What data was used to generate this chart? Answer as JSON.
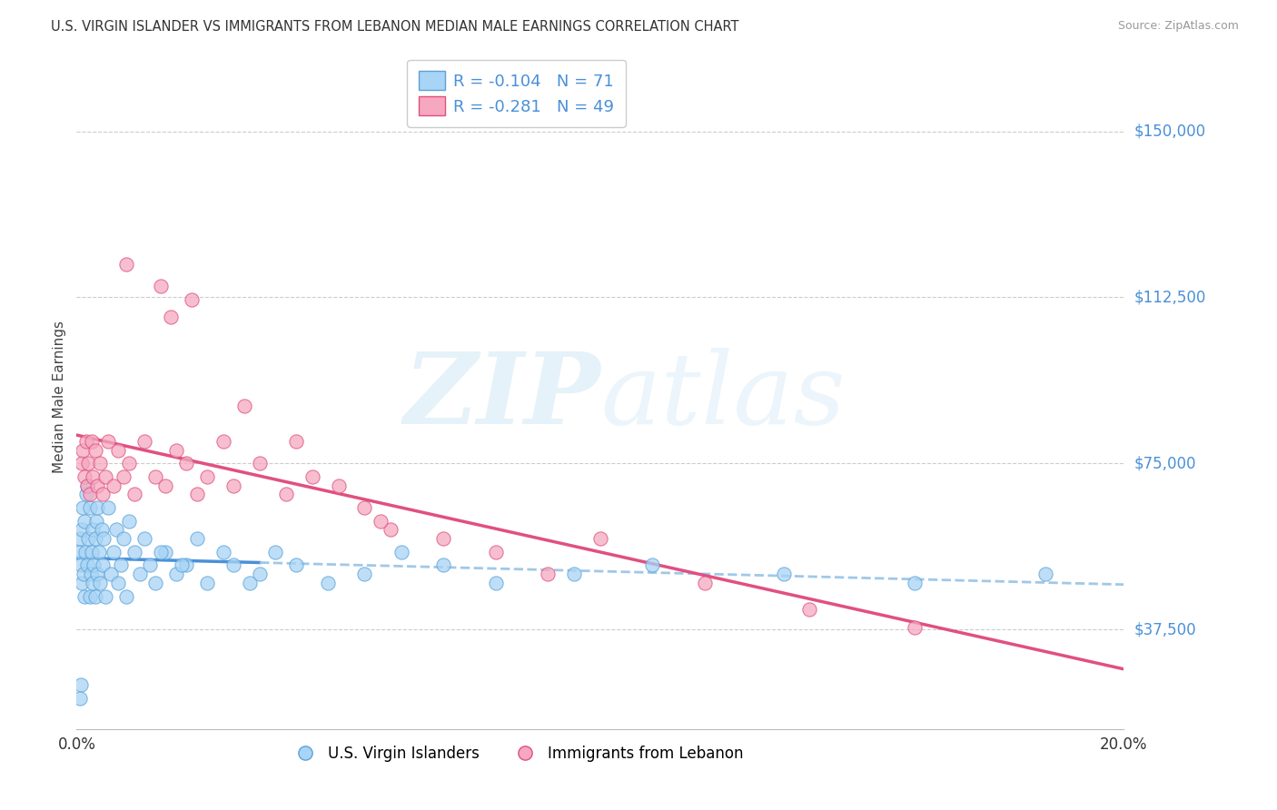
{
  "title": "U.S. VIRGIN ISLANDER VS IMMIGRANTS FROM LEBANON MEDIAN MALE EARNINGS CORRELATION CHART",
  "source": "Source: ZipAtlas.com",
  "ylabel": "Median Male Earnings",
  "y_ticks": [
    37500,
    75000,
    112500,
    150000
  ],
  "y_tick_labels": [
    "$37,500",
    "$75,000",
    "$112,500",
    "$150,000"
  ],
  "x_min": 0.0,
  "x_max": 20.0,
  "y_min": 15000,
  "y_max": 165000,
  "color_blue": "#a8d4f5",
  "color_blue_edge": "#5ba3d9",
  "color_pink": "#f5a8c0",
  "color_pink_edge": "#e05080",
  "color_trend_blue_solid": "#4a90d9",
  "color_trend_blue_dash": "#a0c8e8",
  "color_trend_pink": "#e05080",
  "color_axis_label": "#4a90d9",
  "color_grid": "#cccccc",
  "blue_x": [
    0.05,
    0.07,
    0.08,
    0.1,
    0.1,
    0.12,
    0.13,
    0.15,
    0.15,
    0.17,
    0.18,
    0.2,
    0.2,
    0.22,
    0.25,
    0.25,
    0.27,
    0.28,
    0.3,
    0.3,
    0.32,
    0.35,
    0.35,
    0.37,
    0.4,
    0.4,
    0.42,
    0.45,
    0.48,
    0.5,
    0.52,
    0.55,
    0.6,
    0.65,
    0.7,
    0.75,
    0.8,
    0.85,
    0.9,
    0.95,
    1.0,
    1.1,
    1.2,
    1.3,
    1.4,
    1.5,
    1.7,
    1.9,
    2.1,
    2.3,
    2.5,
    2.8,
    3.0,
    3.3,
    3.5,
    3.8,
    4.2,
    4.8,
    5.5,
    6.2,
    7.0,
    8.0,
    9.5,
    11.0,
    13.5,
    16.0,
    18.5,
    1.6,
    2.0,
    0.08,
    0.06
  ],
  "blue_y": [
    55000,
    58000,
    52000,
    60000,
    48000,
    65000,
    50000,
    62000,
    45000,
    55000,
    68000,
    52000,
    70000,
    58000,
    45000,
    65000,
    50000,
    55000,
    60000,
    48000,
    52000,
    58000,
    45000,
    62000,
    50000,
    65000,
    55000,
    48000,
    60000,
    52000,
    58000,
    45000,
    65000,
    50000,
    55000,
    60000,
    48000,
    52000,
    58000,
    45000,
    62000,
    55000,
    50000,
    58000,
    52000,
    48000,
    55000,
    50000,
    52000,
    58000,
    48000,
    55000,
    52000,
    48000,
    50000,
    55000,
    52000,
    48000,
    50000,
    55000,
    52000,
    48000,
    50000,
    52000,
    50000,
    48000,
    50000,
    55000,
    52000,
    25000,
    22000
  ],
  "pink_x": [
    0.1,
    0.12,
    0.15,
    0.18,
    0.2,
    0.22,
    0.25,
    0.28,
    0.3,
    0.35,
    0.4,
    0.45,
    0.5,
    0.55,
    0.6,
    0.7,
    0.8,
    0.9,
    1.0,
    1.1,
    1.3,
    1.5,
    1.7,
    1.9,
    2.1,
    2.3,
    2.5,
    2.8,
    3.0,
    3.5,
    4.0,
    4.5,
    5.0,
    5.5,
    6.0,
    7.0,
    8.0,
    9.0,
    10.0,
    12.0,
    14.0,
    16.0,
    0.95,
    1.6,
    1.8,
    2.2,
    3.2,
    4.2,
    5.8
  ],
  "pink_y": [
    75000,
    78000,
    72000,
    80000,
    70000,
    75000,
    68000,
    80000,
    72000,
    78000,
    70000,
    75000,
    68000,
    72000,
    80000,
    70000,
    78000,
    72000,
    75000,
    68000,
    80000,
    72000,
    70000,
    78000,
    75000,
    68000,
    72000,
    80000,
    70000,
    75000,
    68000,
    72000,
    70000,
    65000,
    60000,
    58000,
    55000,
    50000,
    58000,
    48000,
    42000,
    38000,
    120000,
    115000,
    108000,
    112000,
    88000,
    80000,
    62000
  ]
}
